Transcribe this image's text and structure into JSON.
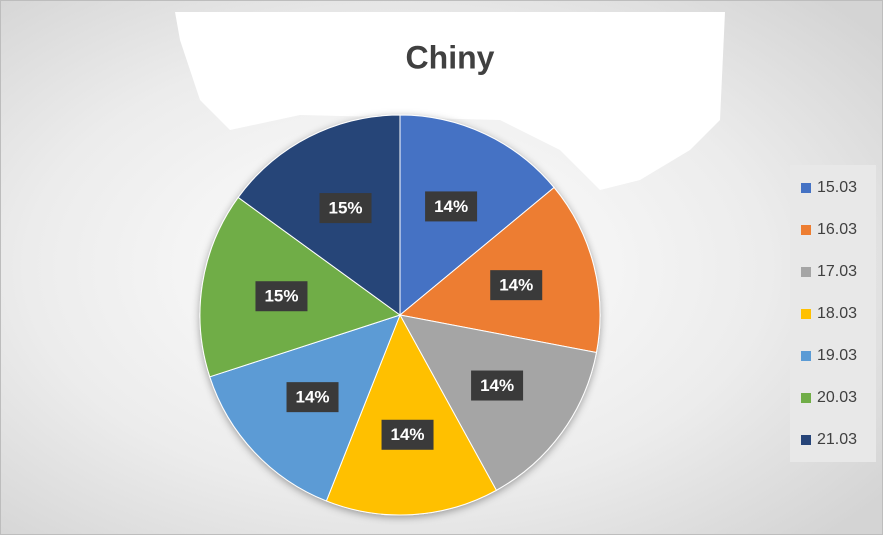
{
  "chart_data": {
    "type": "pie",
    "title": "Chiny",
    "categories": [
      "15.03",
      "16.03",
      "17.03",
      "18.03",
      "19.03",
      "20.03",
      "21.03"
    ],
    "values": [
      14,
      14,
      14,
      14,
      14,
      15,
      15
    ],
    "value_labels": [
      "14%",
      "14%",
      "14%",
      "14%",
      "14%",
      "15%",
      "15%"
    ],
    "colors": [
      "#4472c4",
      "#ed7d31",
      "#a5a5a5",
      "#ffc000",
      "#5b9bd5",
      "#70ad47",
      "#264478"
    ],
    "legend": "right"
  }
}
